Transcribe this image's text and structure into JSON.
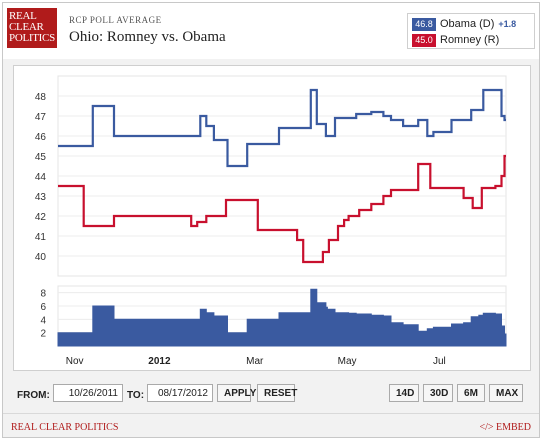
{
  "header": {
    "logo_lines": [
      "REAL",
      "CLEAR",
      "POLITICS"
    ],
    "subtitle": "RCP POLL AVERAGE",
    "title": "Ohio: Romney vs. Obama"
  },
  "legend": [
    {
      "value": "46.8",
      "name": "Obama (D)",
      "change": "+1.8",
      "color": "#3a5aa0"
    },
    {
      "value": "45.0",
      "name": "Romney (R)",
      "change": "",
      "color": "#c8102e"
    }
  ],
  "chart_data": [
    {
      "type": "line",
      "ylim": [
        39,
        49
      ],
      "yticks": [
        "40",
        "41",
        "42",
        "43",
        "44",
        "45",
        "46",
        "47",
        "48"
      ],
      "xticks": [
        "Nov",
        "2012",
        "Mar",
        "May",
        "Jul"
      ],
      "grid": true,
      "series": [
        {
          "name": "Obama (D)",
          "color": "#3a5aa0",
          "x": [
            "2011-10-26",
            "2011-11-05",
            "2011-11-18",
            "2011-12-02",
            "2011-12-16",
            "2012-01-01",
            "2012-01-12",
            "2012-01-28",
            "2012-02-01",
            "2012-02-06",
            "2012-02-15",
            "2012-02-20",
            "2012-02-28",
            "2012-03-06",
            "2012-03-20",
            "2012-04-10",
            "2012-04-14",
            "2012-04-20",
            "2012-04-21",
            "2012-04-26",
            "2012-05-02",
            "2012-05-05",
            "2012-05-10",
            "2012-05-20",
            "2012-05-28",
            "2012-06-02",
            "2012-06-10",
            "2012-06-20",
            "2012-06-26",
            "2012-06-30",
            "2012-07-08",
            "2012-07-12",
            "2012-07-20",
            "2012-07-25",
            "2012-07-30",
            "2012-08-02",
            "2012-08-10",
            "2012-08-14",
            "2012-08-16"
          ],
          "y": [
            45.5,
            45.5,
            47.5,
            46.0,
            46.0,
            46.0,
            46.0,
            47.0,
            46.5,
            45.8,
            44.5,
            44.5,
            45.6,
            45.6,
            46.4,
            48.3,
            46.6,
            46.0,
            46.0,
            46.9,
            46.9,
            46.9,
            47.1,
            47.2,
            47.0,
            46.8,
            46.5,
            46.8,
            46.0,
            46.2,
            46.2,
            46.8,
            46.8,
            47.3,
            47.3,
            48.3,
            48.3,
            47.0,
            46.8
          ]
        },
        {
          "name": "Romney (R)",
          "color": "#c8102e",
          "x": [
            "2011-10-26",
            "2011-11-05",
            "2011-11-12",
            "2011-12-02",
            "2011-12-16",
            "2012-01-01",
            "2012-01-12",
            "2012-01-22",
            "2012-01-26",
            "2012-02-01",
            "2012-02-14",
            "2012-02-24",
            "2012-03-06",
            "2012-03-28",
            "2012-04-01",
            "2012-04-05",
            "2012-04-12",
            "2012-04-18",
            "2012-04-22",
            "2012-04-28",
            "2012-05-02",
            "2012-05-05",
            "2012-05-12",
            "2012-05-20",
            "2012-05-28",
            "2012-06-02",
            "2012-06-12",
            "2012-06-20",
            "2012-06-26",
            "2012-06-28",
            "2012-07-12",
            "2012-07-20",
            "2012-07-26",
            "2012-08-01",
            "2012-08-10",
            "2012-08-14",
            "2012-08-16"
          ],
          "y": [
            43.5,
            43.5,
            41.5,
            42.0,
            42.0,
            42.0,
            42.0,
            41.5,
            41.7,
            42.0,
            42.8,
            42.8,
            41.3,
            41.3,
            40.8,
            39.7,
            39.7,
            40.2,
            40.8,
            41.5,
            41.8,
            42.0,
            42.3,
            42.6,
            43.0,
            43.3,
            43.3,
            44.6,
            44.6,
            43.4,
            43.4,
            42.9,
            42.4,
            43.4,
            43.5,
            44.0,
            45.0
          ]
        }
      ]
    },
    {
      "type": "area",
      "ylim": [
        0,
        9
      ],
      "yticks": [
        "2",
        "4",
        "6",
        "8"
      ],
      "series": [
        {
          "name": "Obama (D)",
          "color": "#3a5aa0",
          "x": [
            "2011-10-26",
            "2011-11-05",
            "2011-11-18",
            "2011-12-02",
            "2011-12-16",
            "2012-01-01",
            "2012-01-12",
            "2012-01-28",
            "2012-02-01",
            "2012-02-06",
            "2012-02-15",
            "2012-02-20",
            "2012-02-28",
            "2012-03-06",
            "2012-03-20",
            "2012-04-10",
            "2012-04-14",
            "2012-04-20",
            "2012-04-21",
            "2012-04-26",
            "2012-05-02",
            "2012-05-05",
            "2012-05-10",
            "2012-05-20",
            "2012-05-28",
            "2012-06-02",
            "2012-06-10",
            "2012-06-20",
            "2012-06-26",
            "2012-06-30",
            "2012-07-08",
            "2012-07-12",
            "2012-07-20",
            "2012-07-25",
            "2012-07-30",
            "2012-08-02",
            "2012-08-10",
            "2012-08-14",
            "2012-08-16"
          ],
          "y": [
            2.0,
            2.0,
            6.0,
            4.0,
            4.0,
            4.0,
            4.0,
            5.5,
            5.0,
            4.5,
            2.0,
            2.0,
            4.0,
            4.0,
            5.0,
            8.5,
            6.5,
            5.8,
            5.5,
            5.0,
            5.0,
            4.9,
            4.8,
            4.6,
            4.5,
            3.5,
            3.2,
            2.2,
            2.6,
            2.8,
            2.8,
            3.3,
            3.5,
            4.4,
            4.6,
            4.9,
            4.8,
            3.0,
            1.8
          ]
        }
      ]
    }
  ],
  "controls": {
    "from_label": "FROM:",
    "from_value": "10/26/2011",
    "to_label": "TO:",
    "to_value": "08/17/2012",
    "apply": "APPLY",
    "reset": "RESET",
    "ranges": [
      "14D",
      "30D",
      "6M",
      "MAX"
    ]
  },
  "footer": {
    "left": "REAL CLEAR POLITICS",
    "right": "</> EMBED"
  }
}
